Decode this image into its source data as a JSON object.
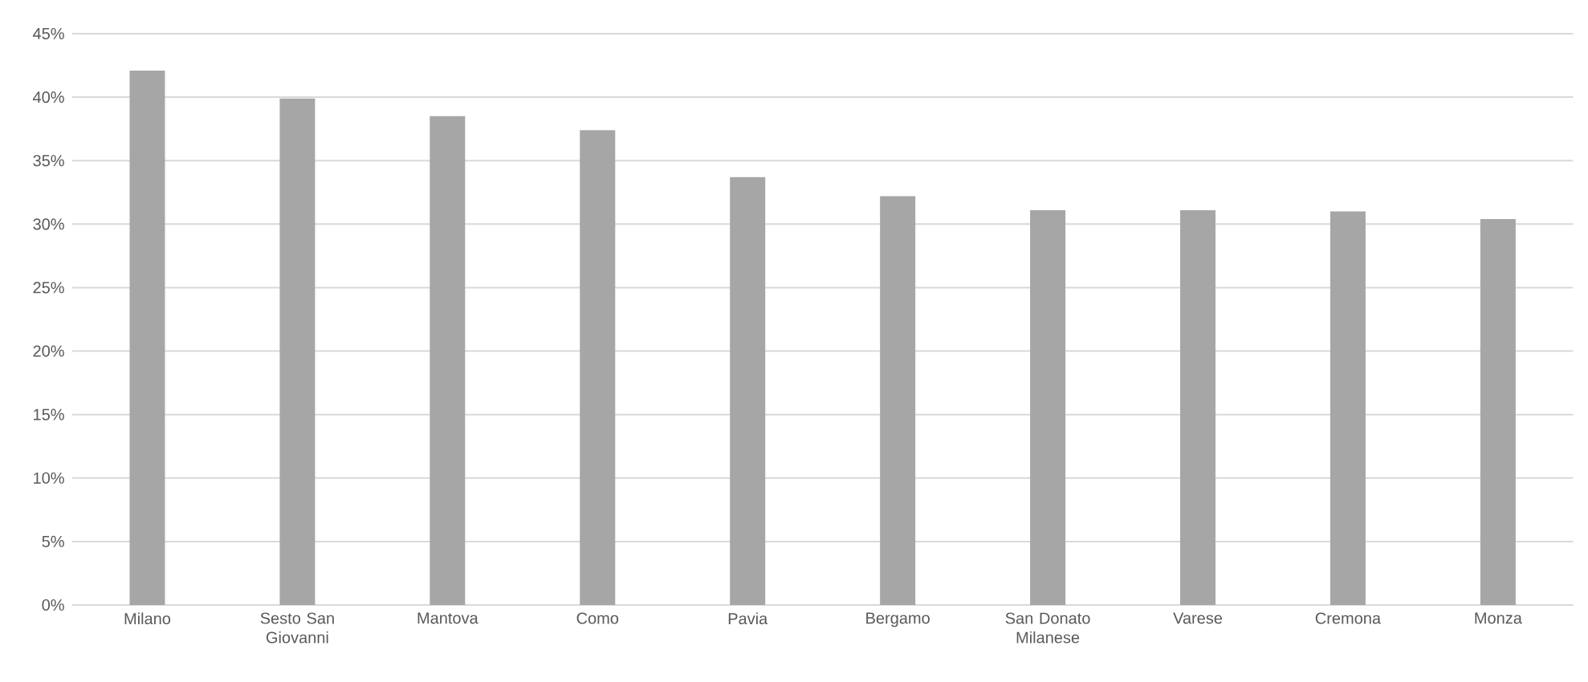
{
  "chart_data": {
    "type": "bar",
    "categories": [
      "Milano",
      "Sesto San Giovanni",
      "Mantova",
      "Como",
      "Pavia",
      "Bergamo",
      "San Donato Milanese",
      "Varese",
      "Cremona",
      "Monza"
    ],
    "values": [
      42.1,
      39.9,
      38.5,
      37.4,
      33.7,
      32.2,
      31.1,
      31.1,
      31.0,
      30.4
    ],
    "color": "#a6a6a6",
    "ylim": [
      0,
      45
    ],
    "yticks": [
      {
        "value": 0,
        "label": "0%"
      },
      {
        "value": 5,
        "label": "5%"
      },
      {
        "value": 10,
        "label": "10%"
      },
      {
        "value": 15,
        "label": "15%"
      },
      {
        "value": 20,
        "label": "20%"
      },
      {
        "value": 25,
        "label": "25%"
      },
      {
        "value": 30,
        "label": "30%"
      },
      {
        "value": 35,
        "label": "35%"
      },
      {
        "value": 40,
        "label": "40%"
      },
      {
        "value": 45,
        "label": "45%"
      }
    ],
    "grid": "y"
  }
}
